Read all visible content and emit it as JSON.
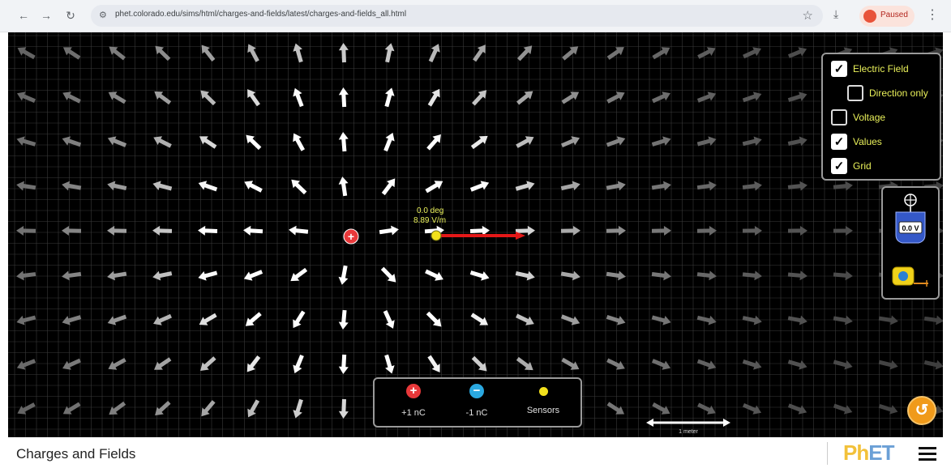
{
  "browser": {
    "url": "phet.colorado.edu/sims/html/charges-and-fields/latest/charges-and-fields_all.html",
    "profile_label": "Paused"
  },
  "controls": {
    "electric_field": {
      "label": "Electric Field",
      "checked": true
    },
    "direction_only": {
      "label": "Direction only",
      "checked": false
    },
    "voltage": {
      "label": "Voltage",
      "checked": false
    },
    "values": {
      "label": "Values",
      "checked": true
    },
    "grid": {
      "label": "Grid",
      "checked": true
    }
  },
  "sensor": {
    "angle": "0.0 deg",
    "magnitude": "8.89 V/m"
  },
  "toolbox": {
    "voltmeter_reading": "0.0 V"
  },
  "charges_panel": {
    "positive": {
      "label": "+1 nC",
      "symbol": "+"
    },
    "negative": {
      "label": "-1 nC",
      "symbol": "−"
    },
    "sensors": {
      "label": "Sensors"
    }
  },
  "scale": {
    "label": "1 meter"
  },
  "navbar": {
    "title": "Charges and Fields",
    "logo_ph": "Ph",
    "logo_et": "ET"
  },
  "colors": {
    "positive": "#e8383a",
    "negative": "#2aa8e0",
    "sensor": "#f2e01c",
    "field_vector": "#e41818",
    "labels": "#e9f05a"
  }
}
